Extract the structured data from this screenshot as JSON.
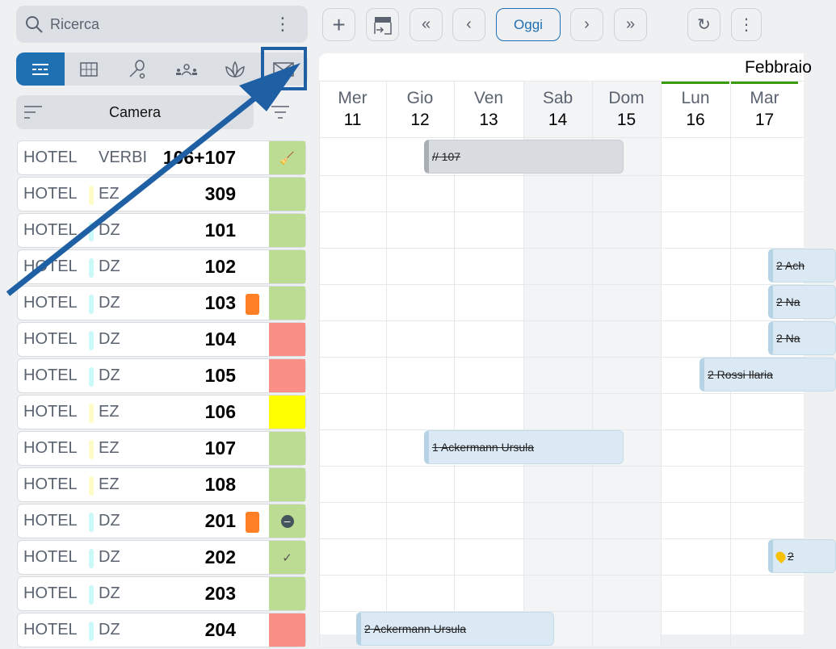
{
  "search": {
    "placeholder": "Ricerca",
    "icon": "search-icon"
  },
  "tabs": [
    {
      "icon": "timeline-icon",
      "active": true
    },
    {
      "icon": "grid-icon"
    },
    {
      "icon": "tennis-icon"
    },
    {
      "icon": "group-icon"
    },
    {
      "icon": "spa-icon"
    },
    {
      "icon": "mail-icon",
      "highlighted": true
    }
  ],
  "sort": {
    "label": "Camera"
  },
  "rooms": [
    {
      "hotel": "HOTEL",
      "type": "VERBI",
      "number": "106+107",
      "status_color": "#bddc93",
      "status_icon": "broom-icon"
    },
    {
      "hotel": "HOTEL",
      "type": "EZ",
      "number": "309",
      "status_color": "#bddc93"
    },
    {
      "hotel": "HOTEL",
      "type": "DZ",
      "number": "101",
      "status_color": "#bddc93"
    },
    {
      "hotel": "HOTEL",
      "type": "DZ",
      "number": "102",
      "status_color": "#bddc93"
    },
    {
      "hotel": "HOTEL",
      "type": "DZ",
      "number": "103",
      "status_color": "#bddc93",
      "tag": true
    },
    {
      "hotel": "HOTEL",
      "type": "DZ",
      "number": "104",
      "status_color": "#f98f86"
    },
    {
      "hotel": "HOTEL",
      "type": "DZ",
      "number": "105",
      "status_color": "#f98f86"
    },
    {
      "hotel": "HOTEL",
      "type": "EZ",
      "number": "106",
      "status_color": "#ffff00"
    },
    {
      "hotel": "HOTEL",
      "type": "EZ",
      "number": "107",
      "status_color": "#bddc93"
    },
    {
      "hotel": "HOTEL",
      "type": "EZ",
      "number": "108",
      "status_color": "#bddc93"
    },
    {
      "hotel": "HOTEL",
      "type": "DZ",
      "number": "201",
      "status_color": "#bddc93",
      "tag": true,
      "status_icon": "minus-circle-icon"
    },
    {
      "hotel": "HOTEL",
      "type": "DZ",
      "number": "202",
      "status_color": "#bddc93",
      "status_icon": "check-icon"
    },
    {
      "hotel": "HOTEL",
      "type": "DZ",
      "number": "203",
      "status_color": "#bddc93"
    },
    {
      "hotel": "HOTEL",
      "type": "DZ",
      "number": "204",
      "status_color": "#f98f86"
    }
  ],
  "type_colors": {
    "EZ": "#fdfbc8",
    "DZ": "#cbf8f8",
    "VERBI": "transparent"
  },
  "toolbar": {
    "today_label": "Oggi",
    "accent": "#1f6fb3"
  },
  "calendar": {
    "month": "Febbraio",
    "days": [
      {
        "d": "Mer",
        "n": "11"
      },
      {
        "d": "Gio",
        "n": "12"
      },
      {
        "d": "Ven",
        "n": "13"
      },
      {
        "d": "Sab",
        "n": "14",
        "weekend": true
      },
      {
        "d": "Dom",
        "n": "15",
        "weekend": true
      },
      {
        "d": "Lun",
        "n": "16",
        "current_week": true
      },
      {
        "d": "Mar",
        "n": "17",
        "current_week": true
      }
    ],
    "bookings": [
      {
        "row": 0,
        "label": "// 107",
        "grey": true
      },
      {
        "row": 3,
        "label": "2 Ach"
      },
      {
        "row": 4,
        "label": "2 Na"
      },
      {
        "row": 5,
        "label": "2 Na"
      },
      {
        "row": 6,
        "label": "2 Rossi Ilaria"
      },
      {
        "row": 8,
        "label": "1 Ackermann Ursula"
      },
      {
        "row": 11,
        "label": "2",
        "alert": true
      },
      {
        "row": 13,
        "label": "2 Ackermann Ursula"
      }
    ]
  }
}
